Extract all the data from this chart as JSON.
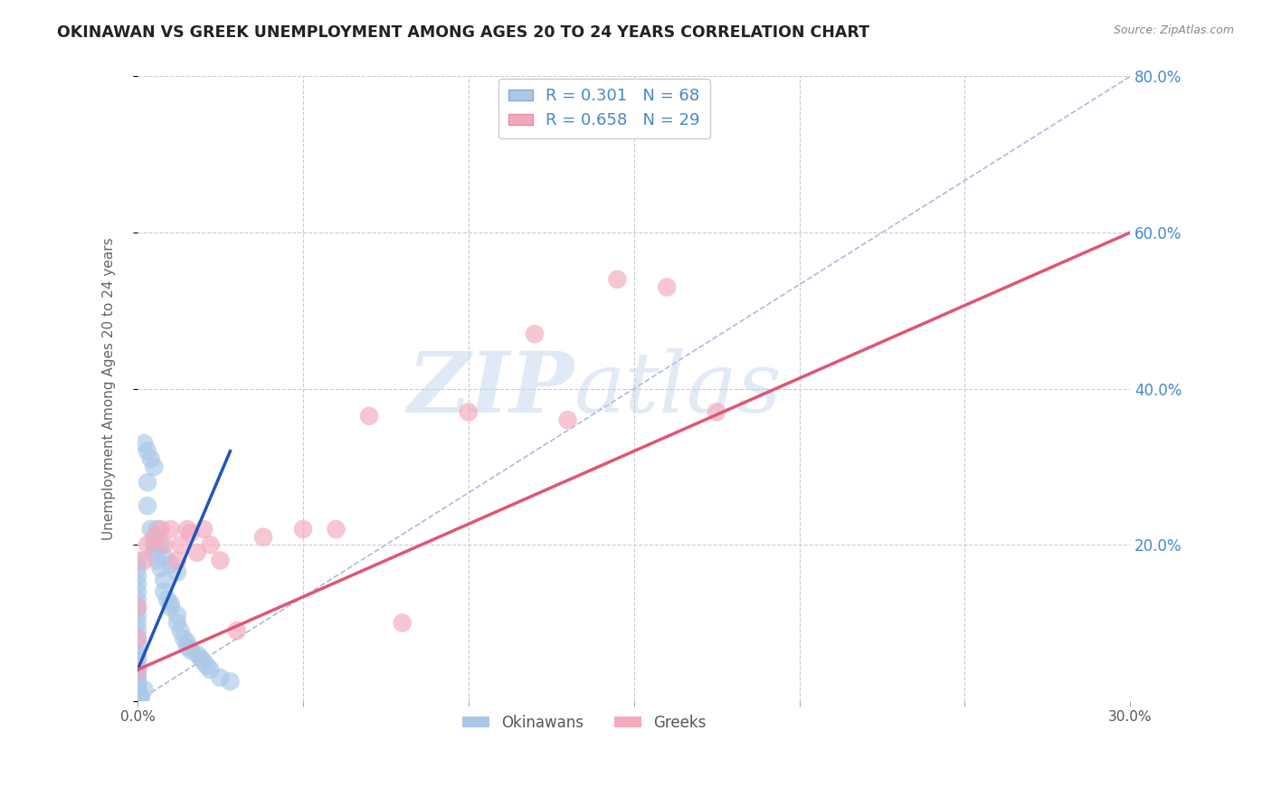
{
  "title": "OKINAWAN VS GREEK UNEMPLOYMENT AMONG AGES 20 TO 24 YEARS CORRELATION CHART",
  "source": "Source: ZipAtlas.com",
  "ylabel": "Unemployment Among Ages 20 to 24 years",
  "xlim": [
    0.0,
    0.3
  ],
  "ylim": [
    0.0,
    0.8
  ],
  "okinawan_color": "#aac8e8",
  "greek_color": "#f4a8bc",
  "okinawan_line_color": "#2255bb",
  "greek_line_color": "#e05575",
  "diagonal_color": "#aabbdd",
  "R_okinawan": 0.301,
  "N_okinawan": 68,
  "R_greek": 0.658,
  "N_greek": 29,
  "okinawan_x": [
    0.0,
    0.0,
    0.0,
    0.0,
    0.0,
    0.0,
    0.0,
    0.0,
    0.0,
    0.0,
    0.0,
    0.0,
    0.0,
    0.0,
    0.0,
    0.0,
    0.0,
    0.0,
    0.0,
    0.0,
    0.0,
    0.0,
    0.0,
    0.0,
    0.0,
    0.0,
    0.0,
    0.0,
    0.0,
    0.0,
    0.003,
    0.003,
    0.004,
    0.005,
    0.005,
    0.006,
    0.007,
    0.008,
    0.008,
    0.009,
    0.01,
    0.01,
    0.012,
    0.012,
    0.013,
    0.014,
    0.015,
    0.015,
    0.016,
    0.018,
    0.019,
    0.02,
    0.021,
    0.022,
    0.025,
    0.028,
    0.002,
    0.003,
    0.004,
    0.005,
    0.006,
    0.007,
    0.008,
    0.01,
    0.012,
    0.001,
    0.001,
    0.002
  ],
  "okinawan_y": [
    0.18,
    0.17,
    0.16,
    0.15,
    0.14,
    0.13,
    0.12,
    0.11,
    0.1,
    0.09,
    0.08,
    0.07,
    0.06,
    0.055,
    0.05,
    0.04,
    0.035,
    0.03,
    0.025,
    0.02,
    0.015,
    0.012,
    0.01,
    0.008,
    0.005,
    0.004,
    0.003,
    0.002,
    0.001,
    0.0,
    0.25,
    0.28,
    0.22,
    0.2,
    0.19,
    0.18,
    0.17,
    0.155,
    0.14,
    0.13,
    0.125,
    0.12,
    0.11,
    0.1,
    0.09,
    0.08,
    0.075,
    0.07,
    0.065,
    0.06,
    0.055,
    0.05,
    0.045,
    0.04,
    0.03,
    0.025,
    0.33,
    0.32,
    0.31,
    0.3,
    0.22,
    0.2,
    0.185,
    0.175,
    0.165,
    0.005,
    0.005,
    0.015
  ],
  "greek_x": [
    0.0,
    0.0,
    0.0,
    0.002,
    0.003,
    0.005,
    0.007,
    0.008,
    0.01,
    0.012,
    0.013,
    0.015,
    0.016,
    0.018,
    0.02,
    0.022,
    0.025,
    0.03,
    0.038,
    0.05,
    0.06,
    0.07,
    0.08,
    0.1,
    0.12,
    0.13,
    0.145,
    0.16,
    0.175
  ],
  "greek_y": [
    0.12,
    0.08,
    0.04,
    0.18,
    0.2,
    0.21,
    0.22,
    0.2,
    0.22,
    0.18,
    0.2,
    0.22,
    0.215,
    0.19,
    0.22,
    0.2,
    0.18,
    0.09,
    0.21,
    0.22,
    0.22,
    0.365,
    0.1,
    0.37,
    0.47,
    0.36,
    0.54,
    0.53,
    0.37
  ],
  "ok_line_x": [
    0.0,
    0.028
  ],
  "ok_line_y": [
    0.04,
    0.32
  ],
  "gr_line_x": [
    0.0,
    0.3
  ],
  "gr_line_y": [
    0.04,
    0.6
  ]
}
